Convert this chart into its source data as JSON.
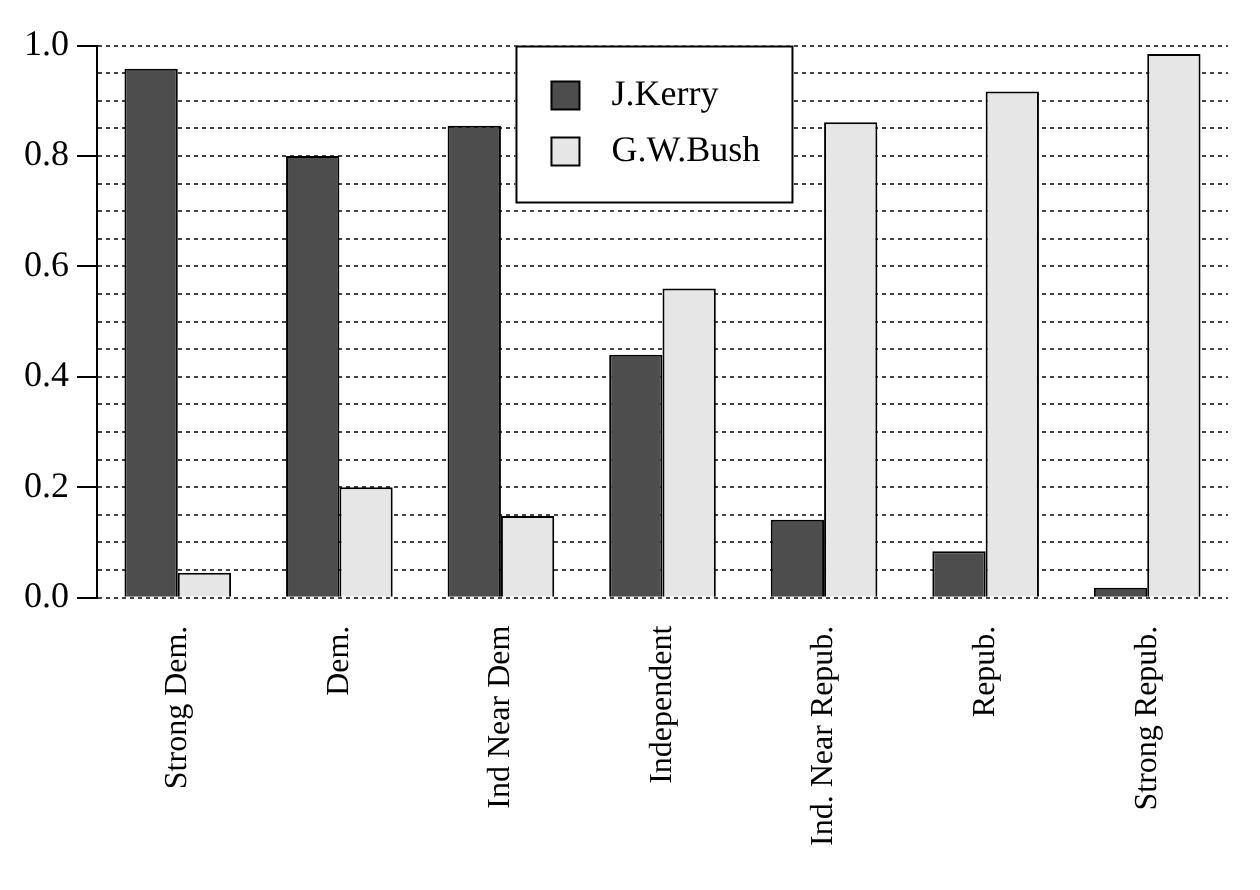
{
  "chart_data": {
    "type": "bar",
    "categories": [
      "Strong Dem.",
      "Dem.",
      "Ind Near Dem",
      "Independent",
      "Ind. Near Repub.",
      "Repub.",
      "Strong Repub."
    ],
    "series": [
      {
        "name": "J.Kerry",
        "color": "#4d4d4d",
        "values": [
          0.958,
          0.8,
          0.855,
          0.44,
          0.141,
          0.084,
          0.018
        ]
      },
      {
        "name": "G.W.Bush",
        "color": "#e6e6e6",
        "values": [
          0.045,
          0.2,
          0.148,
          0.56,
          0.861,
          0.917,
          0.985
        ]
      }
    ],
    "ylim": [
      0,
      1
    ],
    "yticks": [
      {
        "value": 0,
        "label": "0.0"
      },
      {
        "value": 0.05,
        "label": null
      },
      {
        "value": 0.1,
        "label": null
      },
      {
        "value": 0.15,
        "label": null
      },
      {
        "value": 0.2,
        "label": "0.2"
      },
      {
        "value": 0.25,
        "label": null
      },
      {
        "value": 0.3,
        "label": null
      },
      {
        "value": 0.35,
        "label": null
      },
      {
        "value": 0.4,
        "label": "0.4"
      },
      {
        "value": 0.45,
        "label": null
      },
      {
        "value": 0.5,
        "label": null
      },
      {
        "value": 0.55,
        "label": null
      },
      {
        "value": 0.6,
        "label": "0.6"
      },
      {
        "value": 0.65,
        "label": null
      },
      {
        "value": 0.7,
        "label": null
      },
      {
        "value": 0.75,
        "label": null
      },
      {
        "value": 0.8,
        "label": "0.8"
      },
      {
        "value": 0.85,
        "label": null
      },
      {
        "value": 0.9,
        "label": null
      },
      {
        "value": 0.95,
        "label": null
      },
      {
        "value": 1,
        "label": "1.0"
      }
    ],
    "grid": "y",
    "legend": "top"
  }
}
